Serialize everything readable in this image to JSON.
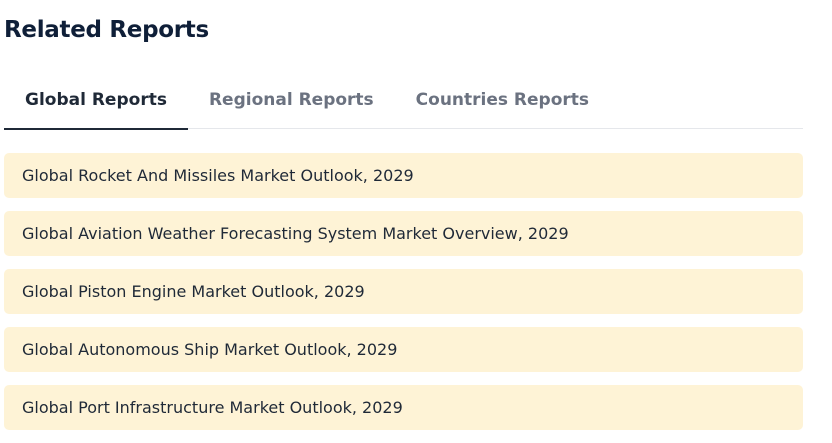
{
  "header": {
    "title": "Related Reports"
  },
  "tabs": [
    {
      "label": "Global Reports",
      "active": true
    },
    {
      "label": "Regional Reports",
      "active": false
    },
    {
      "label": "Countries Reports",
      "active": false
    }
  ],
  "reports": [
    "Global Rocket And Missiles Market Outlook, 2029",
    "Global Aviation Weather Forecasting System Market Overview, 2029",
    "Global Piston Engine Market Outlook, 2029",
    "Global Autonomous Ship Market Outlook, 2029",
    "Global Port Infrastructure Market Outlook, 2029"
  ]
}
